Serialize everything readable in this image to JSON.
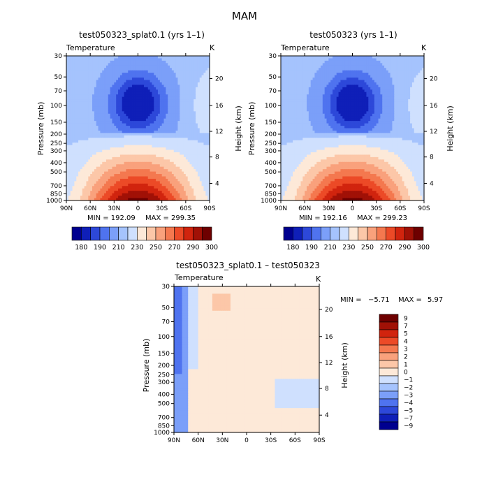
{
  "page_title": "MAM",
  "colors": {
    "abs_levels": [
      "#00008f",
      "#0f1fb8",
      "#2d48d9",
      "#4f73ef",
      "#7b9ff9",
      "#a5c3fd",
      "#cfe0fe",
      "#fde9d8",
      "#fcc7a8",
      "#f9a17c",
      "#f4784f",
      "#ec4a27",
      "#d1240e",
      "#a11106",
      "#6e0000"
    ],
    "diff_levels": [
      "#00008f",
      "#0f1fb8",
      "#2d48d9",
      "#4f73ef",
      "#7b9ff9",
      "#a5c3fd",
      "#cfe0fe",
      "#fde9d8",
      "#fcc7a8",
      "#f9a17c",
      "#f4784f",
      "#ec4a27",
      "#d1240e",
      "#a11106",
      "#6e0000"
    ]
  },
  "chart_data": [
    {
      "type": "heatmap",
      "title": "test050323_splat0.1 (yrs 1–1)",
      "corner_left": "Temperature",
      "corner_right": "K",
      "xlabel": "",
      "ylabel": "Pressure (mb)",
      "y2label": "Height (km)",
      "xticks": [
        "90N",
        "60N",
        "30N",
        "0",
        "30S",
        "60S",
        "90S"
      ],
      "yticks": [
        "30",
        "50",
        "70",
        "100",
        "150",
        "200",
        "250",
        "300",
        "400",
        "500",
        "700",
        "850",
        "1000"
      ],
      "y2ticks": [
        "20",
        "16",
        "12",
        "8",
        "4"
      ],
      "xlim": [
        90,
        -90
      ],
      "ylim": [
        1000,
        30
      ],
      "y_scale": "log",
      "min_label": "MIN = 192.09",
      "max_label": "MAX = 299.35",
      "colorbar": [
        "180",
        "190",
        "210",
        "230",
        "250",
        "270",
        "290",
        "300"
      ],
      "approx_field": "temperature warmest near 1000 mb at equator (~300 K), coldest core near 100 mb over equator (~192 K)"
    },
    {
      "type": "heatmap",
      "title": "test050323 (yrs 1–1)",
      "corner_left": "Temperature",
      "corner_right": "K",
      "xlabel": "",
      "ylabel": "Pressure (mb)",
      "y2label": "Height (km)",
      "xticks": [
        "90N",
        "60N",
        "30N",
        "0",
        "30S",
        "60S",
        "90S"
      ],
      "yticks": [
        "30",
        "50",
        "70",
        "100",
        "150",
        "200",
        "250",
        "300",
        "400",
        "500",
        "700",
        "850",
        "1000"
      ],
      "y2ticks": [
        "20",
        "16",
        "12",
        "8",
        "4"
      ],
      "xlim": [
        90,
        -90
      ],
      "ylim": [
        1000,
        30
      ],
      "y_scale": "log",
      "min_label": "MIN = 192.16",
      "max_label": "MAX = 299.23",
      "colorbar": [
        "180",
        "190",
        "210",
        "230",
        "250",
        "270",
        "290",
        "300"
      ]
    },
    {
      "type": "heatmap",
      "title": "test050323_splat0.1 – test050323",
      "corner_left": "Temperature",
      "corner_right": "K",
      "xlabel": "",
      "ylabel": "Pressure (mb)",
      "y2label": "Height (km)",
      "xticks": [
        "90N",
        "60N",
        "30N",
        "0",
        "30S",
        "60S",
        "90S"
      ],
      "yticks": [
        "30",
        "50",
        "70",
        "100",
        "150",
        "200",
        "250",
        "300",
        "400",
        "500",
        "700",
        "850",
        "1000"
      ],
      "y2ticks": [
        "20",
        "16",
        "12",
        "8",
        "4"
      ],
      "xlim": [
        90,
        -90
      ],
      "ylim": [
        1000,
        30
      ],
      "y_scale": "log",
      "min_label": "MIN =",
      "min_value": "−5.71",
      "max_label": "MAX =",
      "max_value": "5.97",
      "colorbar": [
        "9",
        "7",
        "5",
        "4",
        "3",
        "2",
        "1",
        "0",
        "−1",
        "−2",
        "−3",
        "−4",
        "−5",
        "−7",
        "−9"
      ]
    }
  ]
}
